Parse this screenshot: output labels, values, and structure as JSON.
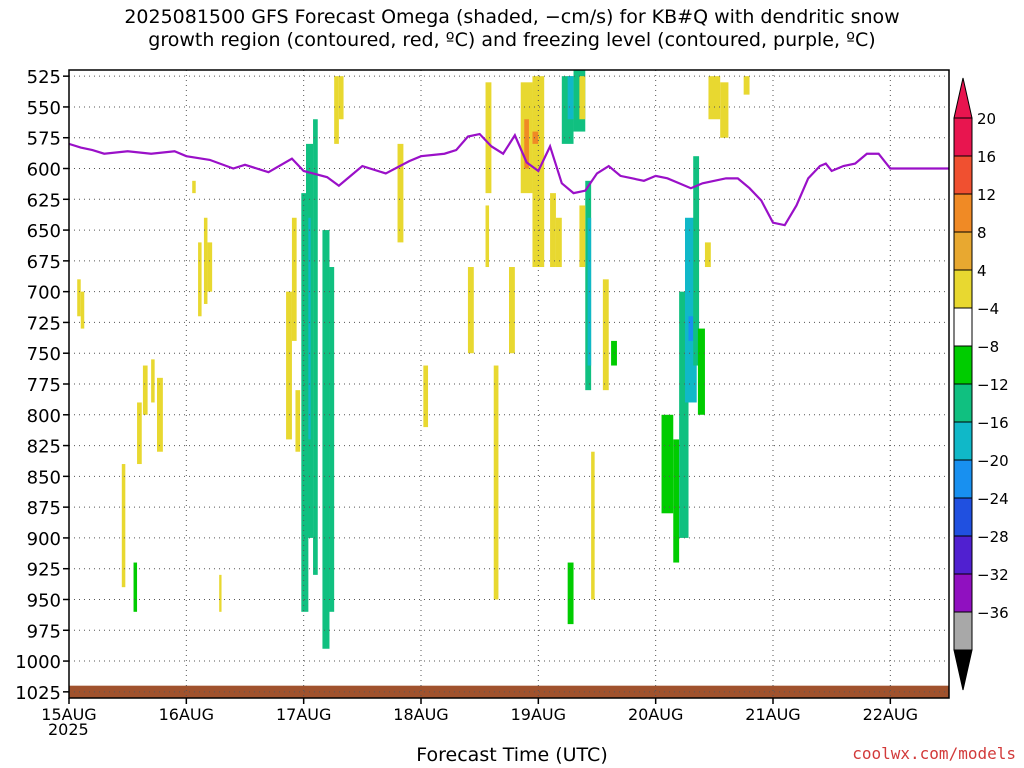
{
  "chart_data": {
    "type": "heatmap",
    "title_line1": "2025081500 GFS Forecast Omega (shaded, −cm/s) for KB#Q with dendritic snow",
    "title_line2": "growth region (contoured, red, ºC) and freezing level (contoured, purple, ºC)",
    "xlabel": "Forecast Time (UTC)",
    "year_label": "2025",
    "credit": "coolwx.com/models",
    "x_ticks": [
      "15AUG",
      "16AUG",
      "17AUG",
      "18AUG",
      "19AUG",
      "20AUG",
      "21AUG",
      "22AUG"
    ],
    "x_range_days": [
      0,
      7.5
    ],
    "y_ticks": [
      525,
      550,
      575,
      600,
      625,
      650,
      675,
      700,
      725,
      750,
      775,
      800,
      825,
      850,
      875,
      900,
      925,
      950,
      975,
      1000,
      1025
    ],
    "y_range": [
      520,
      1030
    ],
    "grid": true,
    "colorbar": {
      "labels": [
        "20",
        "16",
        "12",
        "8",
        "4",
        "−4",
        "−8",
        "−12",
        "−16",
        "−20",
        "−24",
        "−28",
        "−32",
        "−36"
      ],
      "colors": [
        "#e8154f",
        "#f05030",
        "#f08a25",
        "#e8a830",
        "#e8d830",
        "#ffffff",
        "#00cc00",
        "#10c080",
        "#10b8c8",
        "#1890f0",
        "#2050e0",
        "#5020d0",
        "#9010c0",
        "#a8a8a8"
      ]
    },
    "freezing_level": {
      "days": [
        0,
        0.1,
        0.2,
        0.3,
        0.5,
        0.7,
        0.9,
        1.0,
        1.2,
        1.4,
        1.5,
        1.7,
        1.9,
        2.0,
        2.2,
        2.3,
        2.4,
        2.5,
        2.7,
        2.9,
        3.0,
        3.2,
        3.3,
        3.4,
        3.5,
        3.6,
        3.7,
        3.8,
        3.9,
        4.0,
        4.1,
        4.2,
        4.3,
        4.4,
        4.5,
        4.6,
        4.7,
        4.8,
        4.9,
        5.0,
        5.1,
        5.2,
        5.3,
        5.4,
        5.5,
        5.6,
        5.7,
        5.8,
        5.9,
        6.0,
        6.1,
        6.2,
        6.3,
        6.4,
        6.45,
        6.5,
        6.55,
        6.6,
        6.7,
        6.8,
        6.9,
        7.0,
        7.1,
        7.2,
        7.3,
        7.5
      ],
      "pressure": [
        580,
        583,
        585,
        588,
        586,
        588,
        586,
        590,
        593,
        600,
        597,
        603,
        592,
        602,
        607,
        614,
        606,
        598,
        604,
        594,
        590,
        588,
        585,
        574,
        572,
        582,
        588,
        573,
        595,
        602,
        582,
        612,
        620,
        618,
        604,
        598,
        606,
        608,
        610,
        606,
        608,
        612,
        616,
        612,
        610,
        608,
        608,
        616,
        626,
        644,
        646,
        630,
        608,
        598,
        596,
        602,
        600,
        598,
        596,
        588,
        588,
        600,
        600,
        600,
        600,
        600
      ]
    },
    "omega_cells": [
      {
        "d0": 0.07,
        "d1": 0.1,
        "p0": 690,
        "p1": 720,
        "v": 5
      },
      {
        "d0": 0.1,
        "d1": 0.13,
        "p0": 700,
        "p1": 730,
        "v": 5
      },
      {
        "d0": 0.45,
        "d1": 0.48,
        "p0": 840,
        "p1": 940,
        "v": 5
      },
      {
        "d0": 0.55,
        "d1": 0.58,
        "p0": 920,
        "p1": 960,
        "v": -6
      },
      {
        "d0": 0.63,
        "d1": 0.67,
        "p0": 760,
        "p1": 800,
        "v": 5
      },
      {
        "d0": 0.58,
        "d1": 0.62,
        "p0": 790,
        "p1": 840,
        "v": 5
      },
      {
        "d0": 0.7,
        "d1": 0.73,
        "p0": 755,
        "p1": 790,
        "v": 5
      },
      {
        "d0": 0.75,
        "d1": 0.8,
        "p0": 770,
        "p1": 830,
        "v": 5
      },
      {
        "d0": 1.05,
        "d1": 1.08,
        "p0": 610,
        "p1": 620,
        "v": 5
      },
      {
        "d0": 1.1,
        "d1": 1.13,
        "p0": 660,
        "p1": 720,
        "v": 5
      },
      {
        "d0": 1.15,
        "d1": 1.18,
        "p0": 640,
        "p1": 710,
        "v": 5
      },
      {
        "d0": 1.18,
        "d1": 1.22,
        "p0": 660,
        "p1": 700,
        "v": 5
      },
      {
        "d0": 1.28,
        "d1": 1.3,
        "p0": 930,
        "p1": 960,
        "v": 5
      },
      {
        "d0": 1.85,
        "d1": 1.9,
        "p0": 700,
        "p1": 820,
        "v": 5
      },
      {
        "d0": 1.9,
        "d1": 1.94,
        "p0": 640,
        "p1": 740,
        "v": 5
      },
      {
        "d0": 1.93,
        "d1": 1.97,
        "p0": 780,
        "p1": 830,
        "v": 5
      },
      {
        "d0": 1.98,
        "d1": 2.04,
        "p0": 620,
        "p1": 960,
        "v": -8
      },
      {
        "d0": 2.02,
        "d1": 2.08,
        "p0": 580,
        "p1": 900,
        "v": -10
      },
      {
        "d0": 2.04,
        "d1": 2.06,
        "p0": 640,
        "p1": 820,
        "v": -14
      },
      {
        "d0": 2.08,
        "d1": 2.12,
        "p0": 560,
        "p1": 930,
        "v": -8
      },
      {
        "d0": 2.16,
        "d1": 2.22,
        "p0": 650,
        "p1": 990,
        "v": -10
      },
      {
        "d0": 2.22,
        "d1": 2.26,
        "p0": 680,
        "p1": 960,
        "v": -9
      },
      {
        "d0": 2.26,
        "d1": 2.3,
        "p0": 525,
        "p1": 580,
        "v": 5
      },
      {
        "d0": 2.3,
        "d1": 2.34,
        "p0": 525,
        "p1": 560,
        "v": 5
      },
      {
        "d0": 2.8,
        "d1": 2.85,
        "p0": 580,
        "p1": 660,
        "v": 5
      },
      {
        "d0": 3.02,
        "d1": 3.06,
        "p0": 760,
        "p1": 810,
        "v": 5
      },
      {
        "d0": 3.4,
        "d1": 3.45,
        "p0": 680,
        "p1": 750,
        "v": 5
      },
      {
        "d0": 3.55,
        "d1": 3.6,
        "p0": 530,
        "p1": 620,
        "v": 5
      },
      {
        "d0": 3.55,
        "d1": 3.58,
        "p0": 630,
        "p1": 680,
        "v": 5
      },
      {
        "d0": 3.62,
        "d1": 3.66,
        "p0": 760,
        "p1": 950,
        "v": 5
      },
      {
        "d0": 3.75,
        "d1": 3.8,
        "p0": 680,
        "p1": 750,
        "v": 5
      },
      {
        "d0": 3.85,
        "d1": 3.95,
        "p0": 530,
        "p1": 620,
        "v": 5
      },
      {
        "d0": 3.88,
        "d1": 3.92,
        "p0": 560,
        "p1": 600,
        "v": 13
      },
      {
        "d0": 3.95,
        "d1": 4.05,
        "p0": 525,
        "p1": 680,
        "v": 5
      },
      {
        "d0": 3.95,
        "d1": 4.0,
        "p0": 570,
        "p1": 580,
        "v": 13
      },
      {
        "d0": 4.1,
        "d1": 4.15,
        "p0": 620,
        "p1": 680,
        "v": 5
      },
      {
        "d0": 4.15,
        "d1": 4.2,
        "p0": 640,
        "p1": 680,
        "v": 5
      },
      {
        "d0": 4.2,
        "d1": 4.3,
        "p0": 525,
        "p1": 580,
        "v": -8
      },
      {
        "d0": 4.25,
        "d1": 4.3,
        "p0": 525,
        "p1": 560,
        "v": -14
      },
      {
        "d0": 4.3,
        "d1": 4.4,
        "p0": 520,
        "p1": 570,
        "v": -8
      },
      {
        "d0": 4.35,
        "d1": 4.4,
        "p0": 525,
        "p1": 560,
        "v": 5
      },
      {
        "d0": 4.4,
        "d1": 4.45,
        "p0": 610,
        "p1": 780,
        "v": -8
      },
      {
        "d0": 4.42,
        "d1": 4.45,
        "p0": 640,
        "p1": 760,
        "v": -14
      },
      {
        "d0": 4.35,
        "d1": 4.4,
        "p0": 630,
        "p1": 680,
        "v": 5
      },
      {
        "d0": 4.45,
        "d1": 4.48,
        "p0": 830,
        "p1": 950,
        "v": 5
      },
      {
        "d0": 4.55,
        "d1": 4.6,
        "p0": 690,
        "p1": 780,
        "v": 5
      },
      {
        "d0": 4.62,
        "d1": 4.67,
        "p0": 740,
        "p1": 760,
        "v": -6
      },
      {
        "d0": 4.25,
        "d1": 4.3,
        "p0": 920,
        "p1": 970,
        "v": -6
      },
      {
        "d0": 5.05,
        "d1": 5.15,
        "p0": 800,
        "p1": 880,
        "v": -6
      },
      {
        "d0": 5.15,
        "d1": 5.2,
        "p0": 820,
        "p1": 920,
        "v": -6
      },
      {
        "d0": 5.2,
        "d1": 5.28,
        "p0": 700,
        "p1": 900,
        "v": -8
      },
      {
        "d0": 5.25,
        "d1": 5.35,
        "p0": 640,
        "p1": 790,
        "v": -12
      },
      {
        "d0": 5.28,
        "d1": 5.32,
        "p0": 720,
        "p1": 740,
        "v": -18
      },
      {
        "d0": 5.32,
        "d1": 5.37,
        "p0": 590,
        "p1": 760,
        "v": -8
      },
      {
        "d0": 5.36,
        "d1": 5.42,
        "p0": 730,
        "p1": 800,
        "v": -6
      },
      {
        "d0": 5.42,
        "d1": 5.47,
        "p0": 660,
        "p1": 680,
        "v": 5
      },
      {
        "d0": 5.45,
        "d1": 5.55,
        "p0": 525,
        "p1": 560,
        "v": 5
      },
      {
        "d0": 5.55,
        "d1": 5.62,
        "p0": 530,
        "p1": 575,
        "v": 5
      },
      {
        "d0": 5.75,
        "d1": 5.8,
        "p0": 525,
        "p1": 540,
        "v": 5
      }
    ],
    "terrain_pressure": 1020
  }
}
